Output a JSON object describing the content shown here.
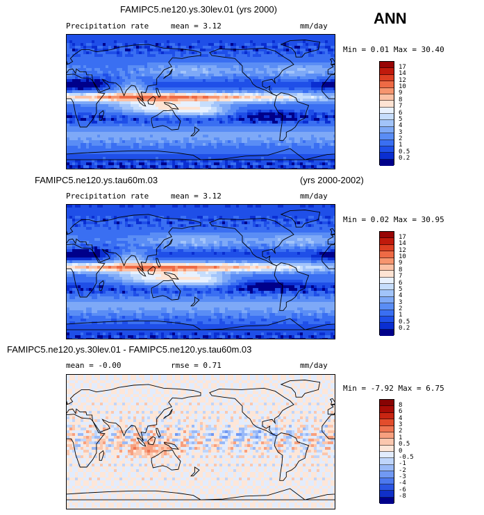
{
  "season": "ANN",
  "panels": [
    {
      "id": "panel-1",
      "title_left": "FAMIPC5.ne120.ys.30lev.01 (yrs 2000)",
      "title_right": "",
      "variable": "Precipitation rate",
      "stat1": "mean =   3.12",
      "stat2": "",
      "units": "mm/day",
      "minmax": "Min =   0.01  Max =   30.40"
    },
    {
      "id": "panel-2",
      "title_left": "FAMIPC5.ne120.ys.tau60m.03",
      "title_right": "(yrs 2000-2002)",
      "variable": "Precipitation rate",
      "stat1": "mean =   3.12",
      "stat2": "",
      "units": "mm/day",
      "minmax": "Min =   0.02  Max =   30.95"
    },
    {
      "id": "panel-3",
      "title_left": "FAMIPC5.ne120.ys.30lev.01 - FAMIPC5.ne120.ys.tau60m.03",
      "title_right": "",
      "variable": "",
      "stat1": "mean =  -0.00",
      "stat2": "rmse =   0.71",
      "units": "mm/day",
      "minmax": "Min =  -7.92  Max =   6.75"
    }
  ],
  "chart_data": [
    {
      "type": "heatmap",
      "title": "FAMIPC5.ne120.ys.30lev.01 (yrs 2000)",
      "variable": "Precipitation rate",
      "units": "mm/day",
      "mean": 3.12,
      "min": 0.01,
      "max": 30.4,
      "colorbar_levels": [
        "0.2",
        "0.5",
        "1",
        "2",
        "3",
        "4",
        "5",
        "6",
        "7",
        "8",
        "9",
        "10",
        "12",
        "14",
        "17"
      ],
      "colorbar_colors": [
        "#00008a",
        "#0a2ed1",
        "#1f4fe8",
        "#3a6ff2",
        "#5a8df5",
        "#7ea9f7",
        "#a2c4fa",
        "#c6ddfc",
        "#e8f1fe",
        "#fde3d3",
        "#fbc1a5",
        "#f6956f",
        "#ee6a45",
        "#dd3f22",
        "#c01a0c",
        "#980505"
      ]
    },
    {
      "type": "heatmap",
      "title": "FAMIPC5.ne120.ys.tau60m.03",
      "subtitle": "(yrs 2000-2002)",
      "variable": "Precipitation rate",
      "units": "mm/day",
      "mean": 3.12,
      "min": 0.02,
      "max": 30.95,
      "colorbar_levels": [
        "0.2",
        "0.5",
        "1",
        "2",
        "3",
        "4",
        "5",
        "6",
        "7",
        "8",
        "9",
        "10",
        "12",
        "14",
        "17"
      ],
      "colorbar_colors": [
        "#00008a",
        "#0a2ed1",
        "#1f4fe8",
        "#3a6ff2",
        "#5a8df5",
        "#7ea9f7",
        "#a2c4fa",
        "#c6ddfc",
        "#e8f1fe",
        "#fde3d3",
        "#fbc1a5",
        "#f6956f",
        "#ee6a45",
        "#dd3f22",
        "#c01a0c",
        "#980505"
      ]
    },
    {
      "type": "heatmap",
      "title": "FAMIPC5.ne120.ys.30lev.01 - FAMIPC5.ne120.ys.tau60m.03",
      "units": "mm/day",
      "mean": -0.0,
      "rmse": 0.71,
      "min": -7.92,
      "max": 6.75,
      "colorbar_levels": [
        "-8",
        "-6",
        "-4",
        "-3",
        "-2",
        "-1",
        "-0.5",
        "0",
        "0.5",
        "1",
        "2",
        "3",
        "4",
        "6",
        "8"
      ],
      "colorbar_colors": [
        "#00008a",
        "#1030c8",
        "#2b55e3",
        "#4c78ee",
        "#7199f3",
        "#99b9f7",
        "#bfd5fb",
        "#e2ecfd",
        "#fde6d8",
        "#fbc7ae",
        "#f7a07f",
        "#ef7552",
        "#e24d2c",
        "#c82512",
        "#a80c06",
        "#870303"
      ]
    }
  ]
}
